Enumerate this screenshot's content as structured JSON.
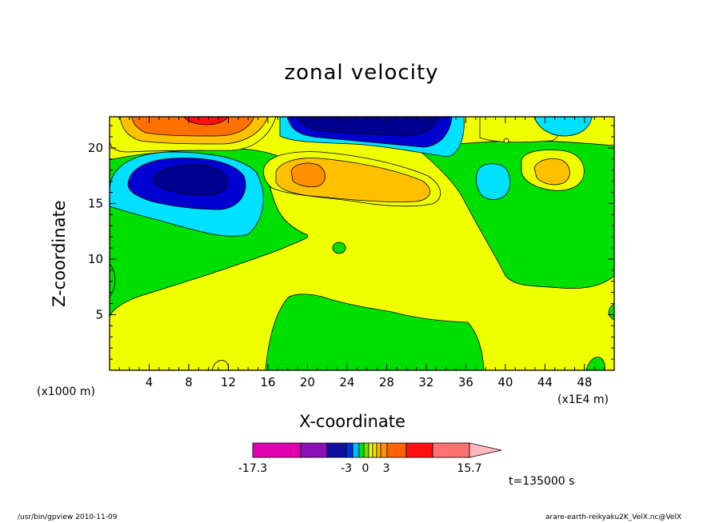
{
  "chart_data": {
    "type": "contour",
    "title": "zonal velocity",
    "xlabel": "X-coordinate",
    "ylabel": "Z-coordinate",
    "x_unit_left": "(x1000 m)",
    "x_unit_right": "(x1E4 m)",
    "xlim": [
      0,
      51
    ],
    "ylim": [
      0,
      22.8
    ],
    "x_ticks": [
      4,
      8,
      12,
      16,
      20,
      24,
      28,
      32,
      36,
      40,
      44,
      48
    ],
    "y_ticks": [
      5,
      10,
      15,
      20
    ],
    "time_label": "t=135000 s",
    "colorbar": {
      "tick_labels": [
        "-17.3",
        "-3",
        "0",
        "3",
        "15.7"
      ],
      "colors": [
        "#e000b0",
        "#8c10b8",
        "#1010a0",
        "#0030e0",
        "#00b8ff",
        "#00e000",
        "#70e000",
        "#e8ff00",
        "#ffe000",
        "#ffc000",
        "#ff9000",
        "#ff6000",
        "#ff1010",
        "#ff7070",
        "#ffb8c0"
      ]
    },
    "regions": [
      {
        "level": "strong-positive",
        "color": "#ff7000",
        "x": 10,
        "z": 22
      },
      {
        "level": "moderate-positive",
        "color": "#ffc000",
        "x": 20,
        "z": 17.5
      },
      {
        "level": "moderate-positive",
        "color": "#ffc000",
        "x": 46,
        "z": 18
      },
      {
        "level": "strong-negative",
        "color": "#0000c8",
        "x": 8,
        "z": 17
      },
      {
        "level": "strong-negative",
        "color": "#0000c8",
        "x": 28,
        "z": 22
      },
      {
        "level": "weak-negative",
        "color": "#00e0ff",
        "x": 40,
        "z": 17
      },
      {
        "level": "near-zero",
        "color": "#00e000",
        "x": 30,
        "z": 4
      },
      {
        "level": "weak-positive",
        "color": "#f0ff00",
        "x": 30,
        "z": 12
      }
    ]
  },
  "footer": {
    "left": "/usr/bin/gpview   2010-11-09",
    "right": "arare-earth-reikyaku2K_VelX.nc@VelX"
  }
}
